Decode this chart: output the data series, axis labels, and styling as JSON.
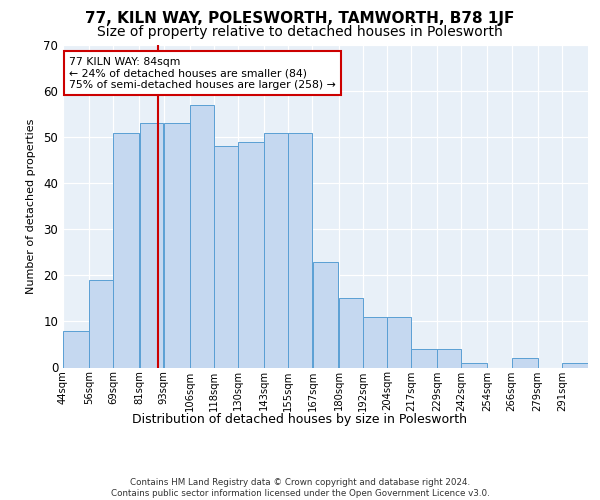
{
  "title": "77, KILN WAY, POLESWORTH, TAMWORTH, B78 1JF",
  "subtitle": "Size of property relative to detached houses in Polesworth",
  "xlabel": "Distribution of detached houses by size in Polesworth",
  "ylabel": "Number of detached properties",
  "categories": [
    "44sqm",
    "56sqm",
    "69sqm",
    "81sqm",
    "93sqm",
    "106sqm",
    "118sqm",
    "130sqm",
    "143sqm",
    "155sqm",
    "167sqm",
    "180sqm",
    "192sqm",
    "204sqm",
    "217sqm",
    "229sqm",
    "242sqm",
    "254sqm",
    "266sqm",
    "279sqm",
    "291sqm"
  ],
  "values": [
    8,
    19,
    51,
    53,
    53,
    57,
    48,
    49,
    51,
    51,
    23,
    15,
    11,
    11,
    4,
    4,
    1,
    0,
    2,
    0,
    1
  ],
  "bar_color": "#c5d8f0",
  "bar_edge_color": "#5a9fd4",
  "vline_x": 84,
  "vline_color": "#cc0000",
  "annotation_text": "77 KILN WAY: 84sqm\n← 24% of detached houses are smaller (84)\n75% of semi-detached houses are larger (258) →",
  "annotation_box_color": "#ffffff",
  "annotation_box_edge": "#cc0000",
  "ylim": [
    0,
    70
  ],
  "yticks": [
    0,
    10,
    20,
    30,
    40,
    50,
    60,
    70
  ],
  "bg_color": "#e8f0f8",
  "footer_line1": "Contains HM Land Registry data © Crown copyright and database right 2024.",
  "footer_line2": "Contains public sector information licensed under the Open Government Licence v3.0.",
  "title_fontsize": 11,
  "subtitle_fontsize": 10,
  "bin_edges": [
    37,
    50,
    62,
    75,
    87,
    100,
    112,
    124,
    137,
    149,
    161,
    174,
    186,
    198,
    210,
    223,
    235,
    248,
    260,
    273,
    285,
    298
  ]
}
